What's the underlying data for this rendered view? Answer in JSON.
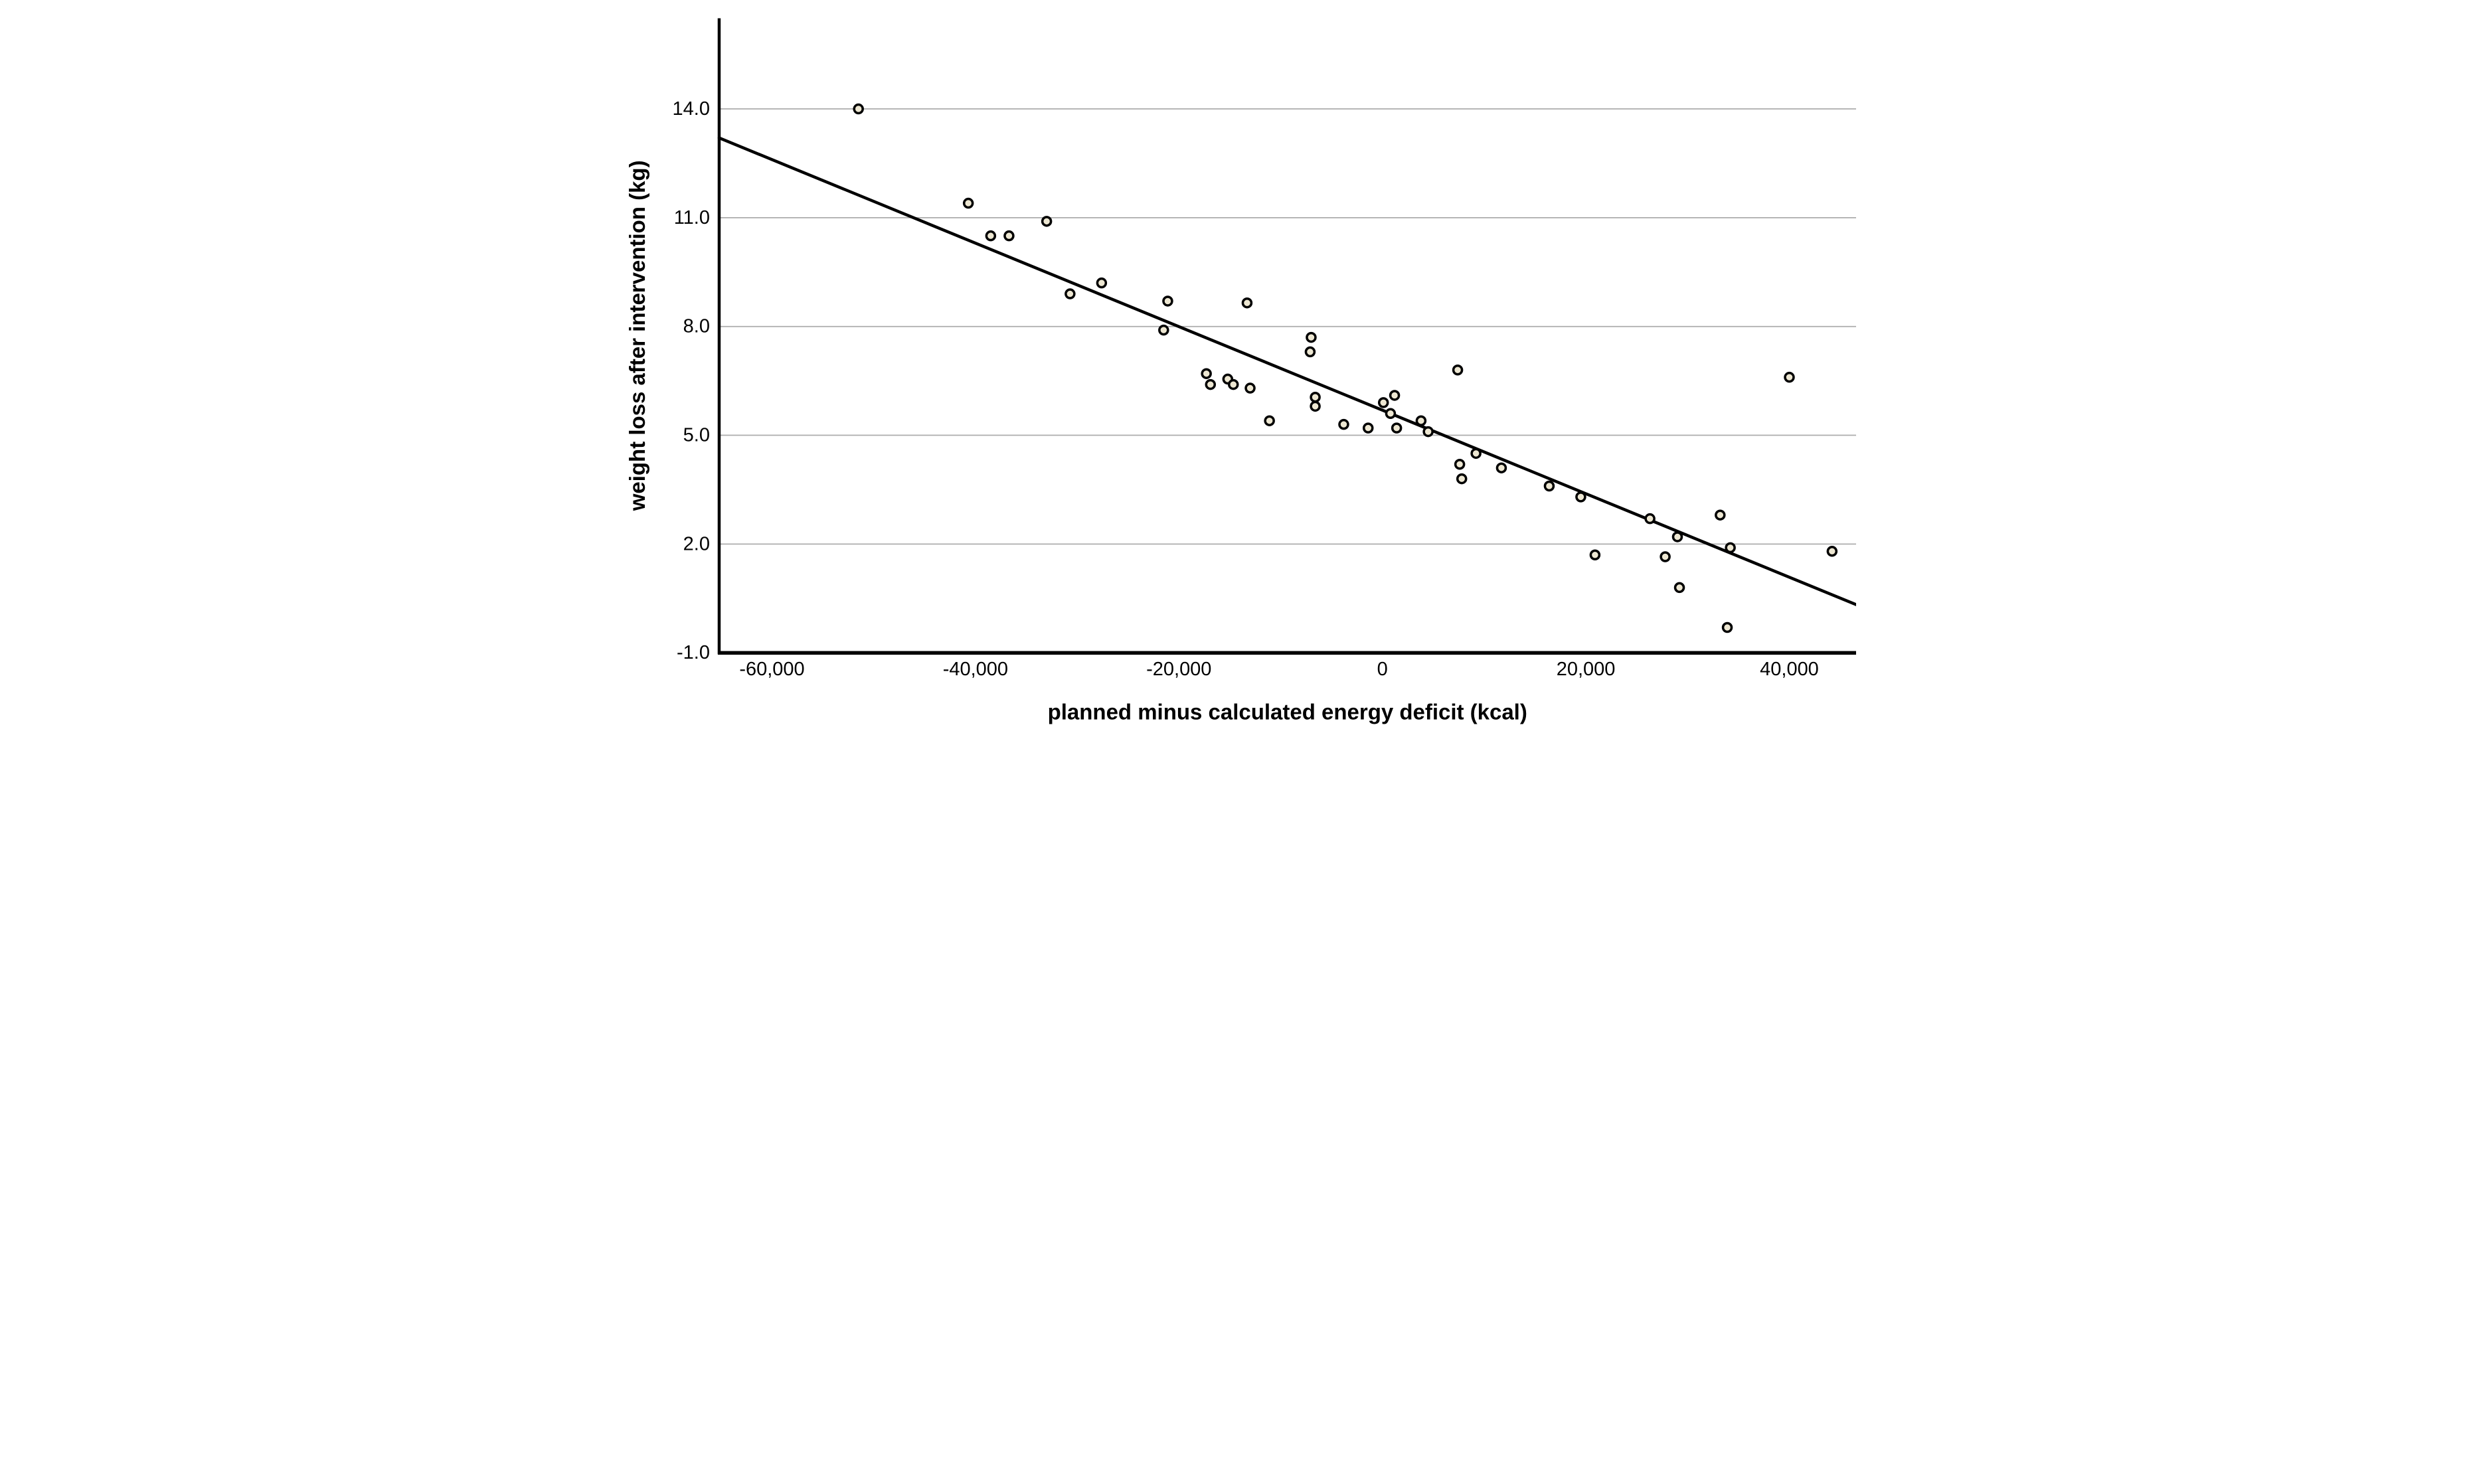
{
  "chart_data": {
    "type": "scatter",
    "title": "",
    "xlabel": "planned minus calculated energy deficit (kcal)",
    "ylabel": "weight loss after intervention (kg)",
    "xlim": [
      -65190,
      46560
    ],
    "ylim": [
      -1.0,
      16.5
    ],
    "grid": "horizontal-only",
    "legend": "none",
    "x_ticks": [
      {
        "value": -60000,
        "label": "-60,000"
      },
      {
        "value": -40000,
        "label": "-40,000"
      },
      {
        "value": -20000,
        "label": "-20,000"
      },
      {
        "value": 0,
        "label": "0"
      },
      {
        "value": 20000,
        "label": "20,000"
      },
      {
        "value": 40000,
        "label": "40,000"
      }
    ],
    "y_ticks": [
      {
        "value": 14.0,
        "label": "14.0"
      },
      {
        "value": 11.0,
        "label": "11.0"
      },
      {
        "value": 8.0,
        "label": "8.0"
      },
      {
        "value": 5.0,
        "label": "5.0"
      },
      {
        "value": 2.0,
        "label": "2.0"
      },
      {
        "value": -1.0,
        "label": "-1.0"
      }
    ],
    "points": [
      [
        -51500,
        14.0
      ],
      [
        -40700,
        11.4
      ],
      [
        -38500,
        10.5
      ],
      [
        -36700,
        10.5
      ],
      [
        -33000,
        10.9
      ],
      [
        -30700,
        8.9
      ],
      [
        -27600,
        9.2
      ],
      [
        -21500,
        7.9
      ],
      [
        -21100,
        8.7
      ],
      [
        -17300,
        6.7
      ],
      [
        -16900,
        6.4
      ],
      [
        -15200,
        6.55
      ],
      [
        -14650,
        6.4
      ],
      [
        -13300,
        8.65
      ],
      [
        -13000,
        6.3
      ],
      [
        -11100,
        5.4
      ],
      [
        -7100,
        7.3
      ],
      [
        -7000,
        7.7
      ],
      [
        -6600,
        6.05
      ],
      [
        -6600,
        5.8
      ],
      [
        -3800,
        5.3
      ],
      [
        -1400,
        5.2
      ],
      [
        100,
        5.9
      ],
      [
        800,
        5.6
      ],
      [
        1200,
        6.1
      ],
      [
        1400,
        5.2
      ],
      [
        3800,
        5.4
      ],
      [
        4500,
        5.1
      ],
      [
        7400,
        6.8
      ],
      [
        7600,
        4.2
      ],
      [
        7800,
        3.8
      ],
      [
        9200,
        4.5
      ],
      [
        11700,
        4.1
      ],
      [
        16400,
        3.6
      ],
      [
        19500,
        3.3
      ],
      [
        20900,
        1.7
      ],
      [
        26300,
        2.7
      ],
      [
        27800,
        1.65
      ],
      [
        29000,
        2.2
      ],
      [
        29200,
        0.8
      ],
      [
        33200,
        2.8
      ],
      [
        33900,
        -0.3
      ],
      [
        34200,
        1.9
      ],
      [
        40000,
        6.6
      ],
      [
        44200,
        1.8
      ]
    ],
    "trendline": {
      "x1": -65190,
      "y1": 13.2,
      "x2": 46560,
      "y2": 0.33
    },
    "style": {
      "background": "#ffffff",
      "marker_fill": "#EDE7D2",
      "marker_stroke": "#000000",
      "trend_color": "#000000",
      "grid_color": "#ACACAC",
      "axis_color": "#000000",
      "label_color": "#000000"
    }
  }
}
